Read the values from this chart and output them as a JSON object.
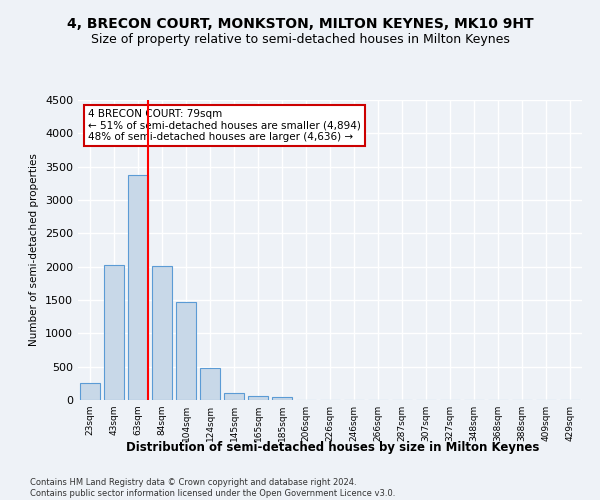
{
  "title": "4, BRECON COURT, MONKSTON, MILTON KEYNES, MK10 9HT",
  "subtitle": "Size of property relative to semi-detached houses in Milton Keynes",
  "xlabel": "Distribution of semi-detached houses by size in Milton Keynes",
  "ylabel": "Number of semi-detached properties",
  "bar_color": "#c8d8e8",
  "bar_edge_color": "#5b9bd5",
  "bar_categories": [
    "23sqm",
    "43sqm",
    "63sqm",
    "84sqm",
    "104sqm",
    "124sqm",
    "145sqm",
    "165sqm",
    "185sqm",
    "206sqm",
    "226sqm",
    "246sqm",
    "266sqm",
    "287sqm",
    "307sqm",
    "327sqm",
    "348sqm",
    "368sqm",
    "388sqm",
    "409sqm",
    "429sqm"
  ],
  "bar_values": [
    255,
    2030,
    3370,
    2010,
    1465,
    475,
    105,
    55,
    50,
    0,
    0,
    0,
    0,
    0,
    0,
    0,
    0,
    0,
    0,
    0,
    0
  ],
  "ylim": [
    0,
    4500
  ],
  "yticks": [
    0,
    500,
    1000,
    1500,
    2000,
    2500,
    3000,
    3500,
    4000,
    4500
  ],
  "annotation_title": "4 BRECON COURT: 79sqm",
  "annotation_line1": "← 51% of semi-detached houses are smaller (4,894)",
  "annotation_line2": "48% of semi-detached houses are larger (4,636) →",
  "footer_line1": "Contains HM Land Registry data © Crown copyright and database right 2024.",
  "footer_line2": "Contains public sector information licensed under the Open Government Licence v3.0.",
  "background_color": "#eef2f7",
  "grid_color": "#ffffff",
  "title_fontsize": 10,
  "subtitle_fontsize": 9,
  "annotation_box_color": "#ffffff",
  "annotation_box_edge": "#cc0000",
  "red_line_bin": 2
}
